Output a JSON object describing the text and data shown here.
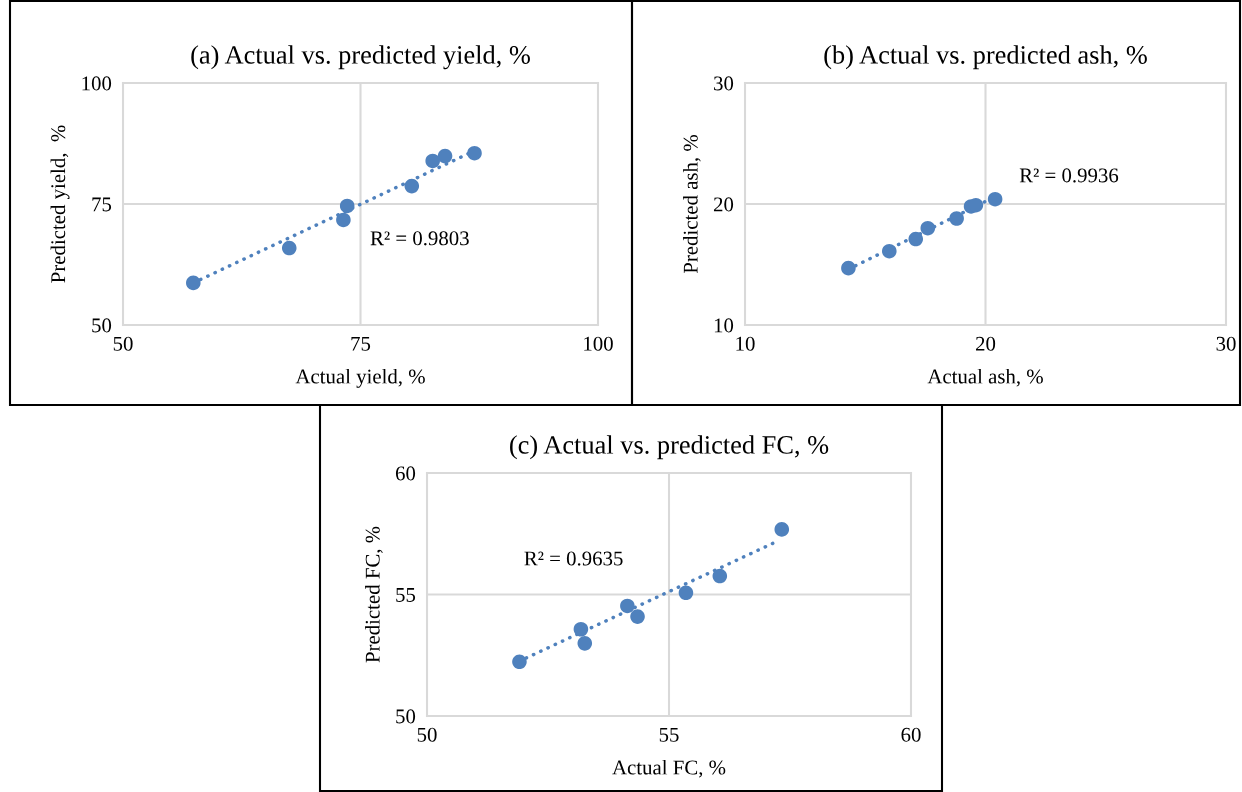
{
  "chart_data": [
    {
      "type": "scatter",
      "title": "(a) Actual vs. predicted yield, %",
      "xlabel": "Actual yield, %",
      "ylabel": "Predicted yield,  %",
      "xlim": [
        50,
        100
      ],
      "ylim": [
        50,
        100
      ],
      "xticks": [
        50,
        75,
        100
      ],
      "yticks": [
        50,
        75,
        100
      ],
      "grid": true,
      "annotations": [
        "R² = 0.9803"
      ],
      "series": [
        {
          "marker": "circle",
          "color": "#4f81bd",
          "x": [
            57.4,
            67.5,
            73.2,
            73.6,
            80.4,
            82.6,
            83.9,
            87.0
          ],
          "values": [
            58.7,
            65.9,
            71.7,
            74.6,
            78.7,
            83.9,
            84.9,
            85.5
          ]
        },
        {
          "type": "line",
          "line_style": "dotted",
          "color": "#4f81bd",
          "x": [
            57.4,
            87.0
          ],
          "values": [
            58.7,
            86.0
          ]
        }
      ]
    },
    {
      "type": "scatter",
      "title": "(b) Actual vs. predicted ash, %",
      "xlabel": "Actual ash, %",
      "ylabel": "Predicted ash, %",
      "xlim": [
        10,
        30
      ],
      "ylim": [
        10,
        30
      ],
      "xticks": [
        10,
        20,
        30
      ],
      "yticks": [
        10,
        20,
        30
      ],
      "grid": true,
      "annotations": [
        "R² = 0.9936"
      ],
      "series": [
        {
          "marker": "circle",
          "color": "#4f81bd",
          "x": [
            14.3,
            16.0,
            17.1,
            17.6,
            18.8,
            19.4,
            19.6,
            20.4
          ],
          "values": [
            14.7,
            16.1,
            17.1,
            18.0,
            18.8,
            19.8,
            19.9,
            20.4
          ]
        },
        {
          "type": "line",
          "line_style": "dotted",
          "color": "#4f81bd",
          "x": [
            14.3,
            20.4
          ],
          "values": [
            14.6,
            20.6
          ]
        }
      ]
    },
    {
      "type": "scatter",
      "title": "(c) Actual vs. predicted FC, %",
      "xlabel": "Actual FC, %",
      "ylabel": "Predicted FC, %",
      "xlim": [
        50,
        60
      ],
      "ylim": [
        50,
        60
      ],
      "xticks": [
        50,
        55,
        60
      ],
      "yticks": [
        50,
        55,
        60
      ],
      "grid": true,
      "annotations": [
        "R² = 0.9635"
      ],
      "series": [
        {
          "marker": "circle",
          "color": "#4f81bd",
          "x": [
            51.91,
            53.18,
            53.26,
            54.14,
            54.35,
            55.35,
            56.05,
            57.33
          ],
          "values": [
            52.23,
            53.57,
            52.99,
            54.53,
            54.09,
            55.07,
            55.76,
            57.68
          ]
        },
        {
          "type": "line",
          "line_style": "dotted",
          "color": "#4f81bd",
          "x": [
            51.9,
            57.25
          ],
          "values": [
            52.25,
            57.2
          ]
        }
      ]
    }
  ]
}
